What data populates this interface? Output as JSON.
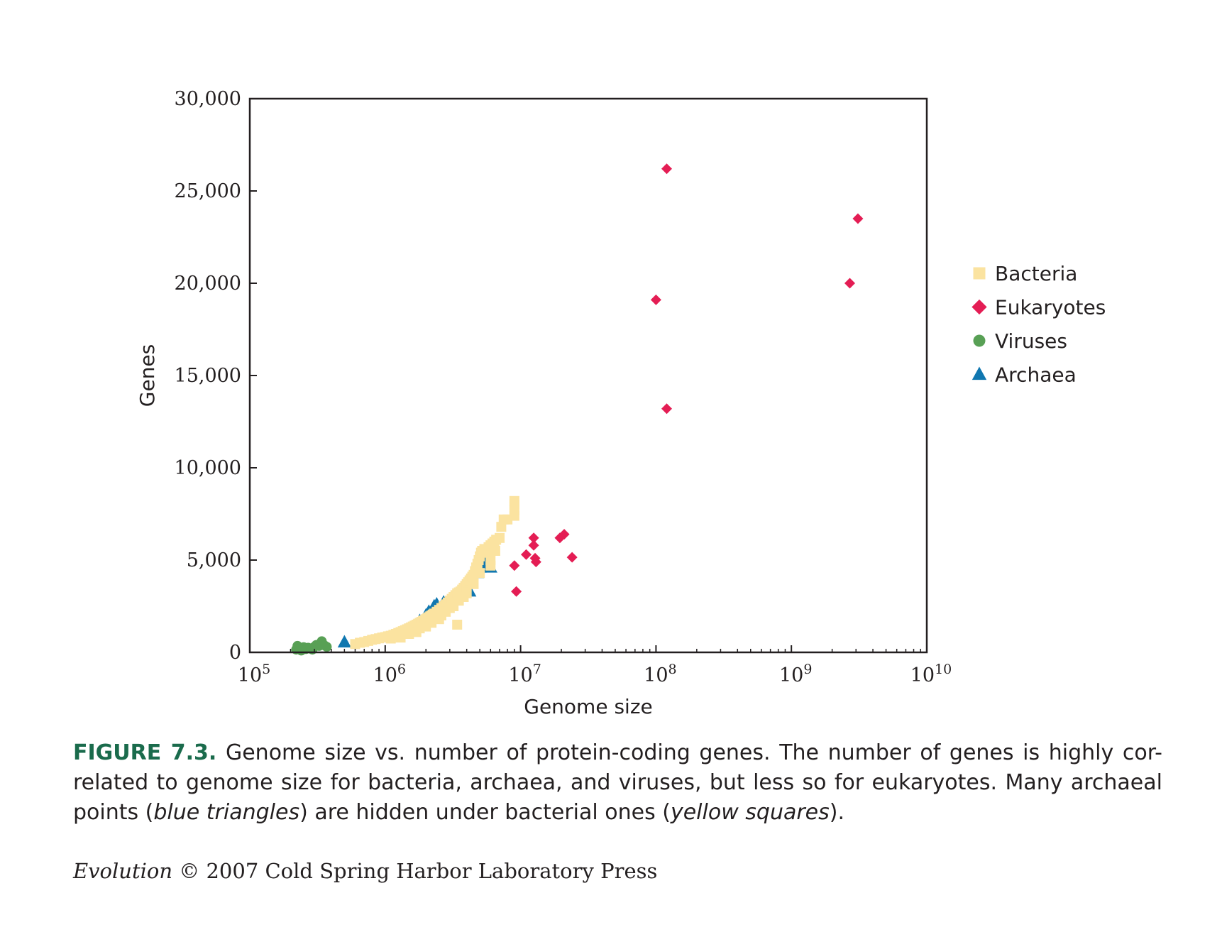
{
  "chart_data": {
    "type": "scatter",
    "xlabel": "Genome size",
    "ylabel": "Genes",
    "xscale": "log",
    "xlim": [
      100000,
      10000000000
    ],
    "ylim": [
      0,
      30000
    ],
    "x_ticks": [
      {
        "base": "10",
        "exp": "5"
      },
      {
        "base": "10",
        "exp": "6"
      },
      {
        "base": "10",
        "exp": "7"
      },
      {
        "base": "10",
        "exp": "8"
      },
      {
        "base": "10",
        "exp": "9"
      },
      {
        "base": "10",
        "exp": "10"
      }
    ],
    "y_ticks": [
      "0",
      "5,000",
      "10,000",
      "15,000",
      "20,000",
      "25,000",
      "30,000"
    ],
    "y_tick_values": [
      0,
      5000,
      10000,
      15000,
      20000,
      25000,
      30000
    ],
    "grid": false,
    "legend_position": "right",
    "series": [
      {
        "name": "Bacteria",
        "marker": "square",
        "color": "#fbe3a0",
        "points": [
          [
            600000,
            450
          ],
          [
            650000,
            520
          ],
          [
            700000,
            560
          ],
          [
            750000,
            620
          ],
          [
            800000,
            680
          ],
          [
            850000,
            720
          ],
          [
            900000,
            760
          ],
          [
            950000,
            800
          ],
          [
            1000000,
            830
          ],
          [
            1050000,
            870
          ],
          [
            1100000,
            900
          ],
          [
            1150000,
            950
          ],
          [
            1200000,
            1000
          ],
          [
            1250000,
            1050
          ],
          [
            1300000,
            1100
          ],
          [
            1350000,
            1150
          ],
          [
            1400000,
            1200
          ],
          [
            1450000,
            1250
          ],
          [
            1500000,
            1300
          ],
          [
            1550000,
            1350
          ],
          [
            1600000,
            1400
          ],
          [
            1650000,
            1450
          ],
          [
            1700000,
            1500
          ],
          [
            1750000,
            1550
          ],
          [
            1800000,
            1600
          ],
          [
            1850000,
            1650
          ],
          [
            1900000,
            1700
          ],
          [
            1950000,
            1750
          ],
          [
            2000000,
            1800
          ],
          [
            2050000,
            1850
          ],
          [
            2100000,
            1900
          ],
          [
            2150000,
            1950
          ],
          [
            2200000,
            2000
          ],
          [
            2250000,
            2050
          ],
          [
            2300000,
            2100
          ],
          [
            2400000,
            2200
          ],
          [
            2500000,
            2300
          ],
          [
            2600000,
            2400
          ],
          [
            2700000,
            2500
          ],
          [
            2800000,
            2600
          ],
          [
            2900000,
            2700
          ],
          [
            3000000,
            2800
          ],
          [
            3100000,
            2900
          ],
          [
            3200000,
            3000
          ],
          [
            3300000,
            3100
          ],
          [
            3400000,
            3200
          ],
          [
            3500000,
            3250
          ],
          [
            3600000,
            3300
          ],
          [
            3700000,
            3400
          ],
          [
            3800000,
            3500
          ],
          [
            3900000,
            3600
          ],
          [
            4000000,
            3700
          ],
          [
            4100000,
            3800
          ],
          [
            4200000,
            3900
          ],
          [
            4300000,
            4000
          ],
          [
            4400000,
            4100
          ],
          [
            4500000,
            4200
          ],
          [
            4600000,
            4400
          ],
          [
            4700000,
            4600
          ],
          [
            4800000,
            4800
          ],
          [
            4900000,
            5000
          ],
          [
            5000000,
            5200
          ],
          [
            5100000,
            5400
          ],
          [
            5200000,
            5500
          ],
          [
            5400000,
            5600
          ],
          [
            5600000,
            5400
          ],
          [
            5800000,
            5700
          ],
          [
            6000000,
            5800
          ],
          [
            6200000,
            5900
          ],
          [
            6400000,
            6000
          ],
          [
            6600000,
            6100
          ],
          [
            7000000,
            6200
          ],
          [
            7200000,
            6800
          ],
          [
            7500000,
            7200
          ],
          [
            8000000,
            7200
          ],
          [
            9000000,
            7400
          ],
          [
            9000000,
            7700
          ],
          [
            9000000,
            8000
          ],
          [
            9000000,
            8200
          ],
          [
            3400000,
            1500
          ],
          [
            1100000,
            750
          ],
          [
            1300000,
            800
          ],
          [
            1700000,
            1100
          ],
          [
            2000000,
            1400
          ],
          [
            2200000,
            1600
          ],
          [
            2500000,
            1800
          ],
          [
            2800000,
            2200
          ],
          [
            3000000,
            2400
          ],
          [
            3500000,
            2800
          ],
          [
            4000000,
            3200
          ],
          [
            4500000,
            3700
          ],
          [
            5000000,
            4300
          ],
          [
            6000000,
            5000
          ],
          [
            6500000,
            5500
          ],
          [
            6000000,
            4700
          ],
          [
            1500000,
            1000
          ],
          [
            1800000,
            1300
          ],
          [
            2600000,
            2000
          ],
          [
            3200000,
            2500
          ],
          [
            3800000,
            3000
          ]
        ]
      },
      {
        "name": "Eukaryotes",
        "marker": "diamond",
        "color": "#e41d54",
        "points": [
          [
            120000000,
            26200
          ],
          [
            3100000000,
            23500
          ],
          [
            2700000000,
            20000
          ],
          [
            100000000,
            19100
          ],
          [
            120000000,
            13200
          ],
          [
            12500000,
            6200
          ],
          [
            12500000,
            5800
          ],
          [
            21000000,
            6400
          ],
          [
            19500000,
            6200
          ],
          [
            11000000,
            5300
          ],
          [
            12800000,
            5100
          ],
          [
            13000000,
            4900
          ],
          [
            24000000,
            5150
          ],
          [
            9000000,
            4700
          ],
          [
            9300000,
            3300
          ]
        ]
      },
      {
        "name": "Viruses",
        "marker": "circle",
        "color": "#58a055",
        "points": [
          [
            220000,
            150
          ],
          [
            225000,
            350
          ],
          [
            235000,
            200
          ],
          [
            250000,
            280
          ],
          [
            260000,
            180
          ],
          [
            270000,
            250
          ],
          [
            285000,
            200
          ],
          [
            300000,
            300
          ],
          [
            310000,
            400
          ],
          [
            325000,
            350
          ],
          [
            340000,
            600
          ],
          [
            355000,
            380
          ],
          [
            370000,
            300
          ],
          [
            240000,
            100
          ],
          [
            290000,
            150
          ]
        ]
      },
      {
        "name": "Archaea",
        "marker": "triangle",
        "color": "#1077b0",
        "points": [
          [
            500000,
            540
          ],
          [
            1800000,
            1700
          ],
          [
            2000000,
            2000
          ],
          [
            2300000,
            2500
          ],
          [
            2400000,
            2600
          ],
          [
            2700000,
            2700
          ],
          [
            3300000,
            3000
          ],
          [
            4200000,
            3300
          ],
          [
            4800000,
            4300
          ],
          [
            5000000,
            4600
          ],
          [
            5500000,
            4800
          ],
          [
            6000000,
            4600
          ],
          [
            3800000,
            3500
          ],
          [
            2100000,
            2200
          ]
        ]
      }
    ]
  },
  "caption": {
    "label": "FIGURE 7.3.",
    "part1": " Genome size vs. number of protein-coding genes. The number of genes is highly cor-related to genome size for bacteria, archaea, and viruses, but less so for eukaryotes. Many archaeal points (",
    "italic1": "blue triangles",
    "part2": ") are hidden under bacterial ones (",
    "italic2": "yellow squares",
    "part3": ")."
  },
  "credit": {
    "book": "Evolution",
    "rest": " © 2007 Cold Spring Harbor Laboratory Press"
  }
}
